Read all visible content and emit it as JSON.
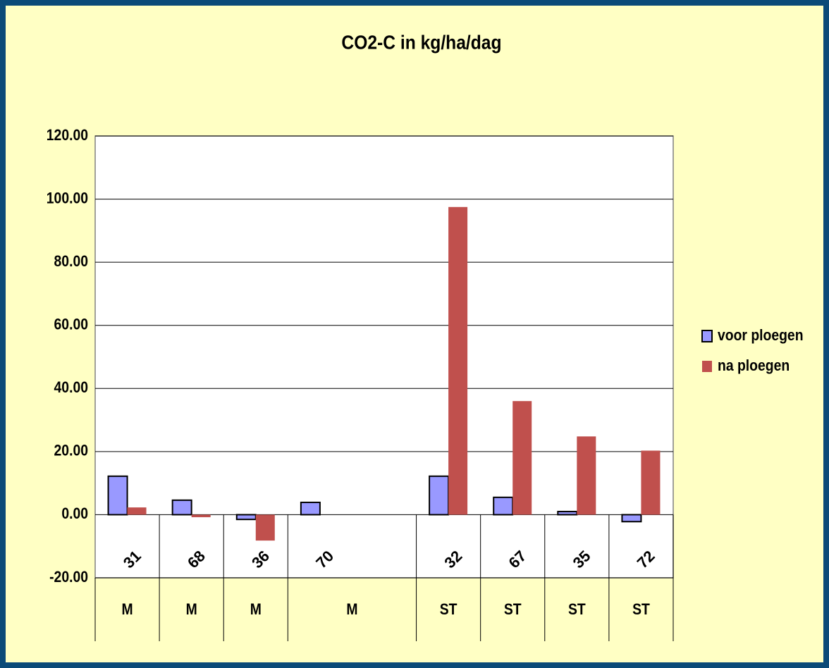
{
  "chart_data": {
    "type": "bar",
    "title": "CO2-C in kg/ha/dag",
    "categories": [
      "31",
      "68",
      "36",
      "70",
      null,
      "32",
      "67",
      "35",
      "72"
    ],
    "groups": [
      "M",
      "M",
      "M",
      "M",
      null,
      "ST",
      "ST",
      "ST",
      "ST"
    ],
    "series": [
      {
        "name": "voor ploegen",
        "color": "#9999ff",
        "values": [
          12.2,
          4.6,
          -1.5,
          3.9,
          null,
          12.2,
          5.5,
          1.0,
          -2.2
        ]
      },
      {
        "name": "na ploegen",
        "color": "#c0504d",
        "values": [
          2.3,
          -0.8,
          -8.2,
          null,
          null,
          97.5,
          36.0,
          24.8,
          20.3
        ]
      }
    ],
    "ylim": [
      -20,
      120
    ],
    "yticks": [
      {
        "value": -20,
        "label": "-20.00"
      },
      {
        "value": 0,
        "label": "0.00"
      },
      {
        "value": 20,
        "label": "20.00"
      },
      {
        "value": 40,
        "label": "40.00"
      },
      {
        "value": 60,
        "label": "60.00"
      },
      {
        "value": 80,
        "label": "80.00"
      },
      {
        "value": 100,
        "label": "100.00"
      },
      {
        "value": 120,
        "label": "120.00"
      }
    ],
    "grid": true,
    "legend": "right"
  }
}
